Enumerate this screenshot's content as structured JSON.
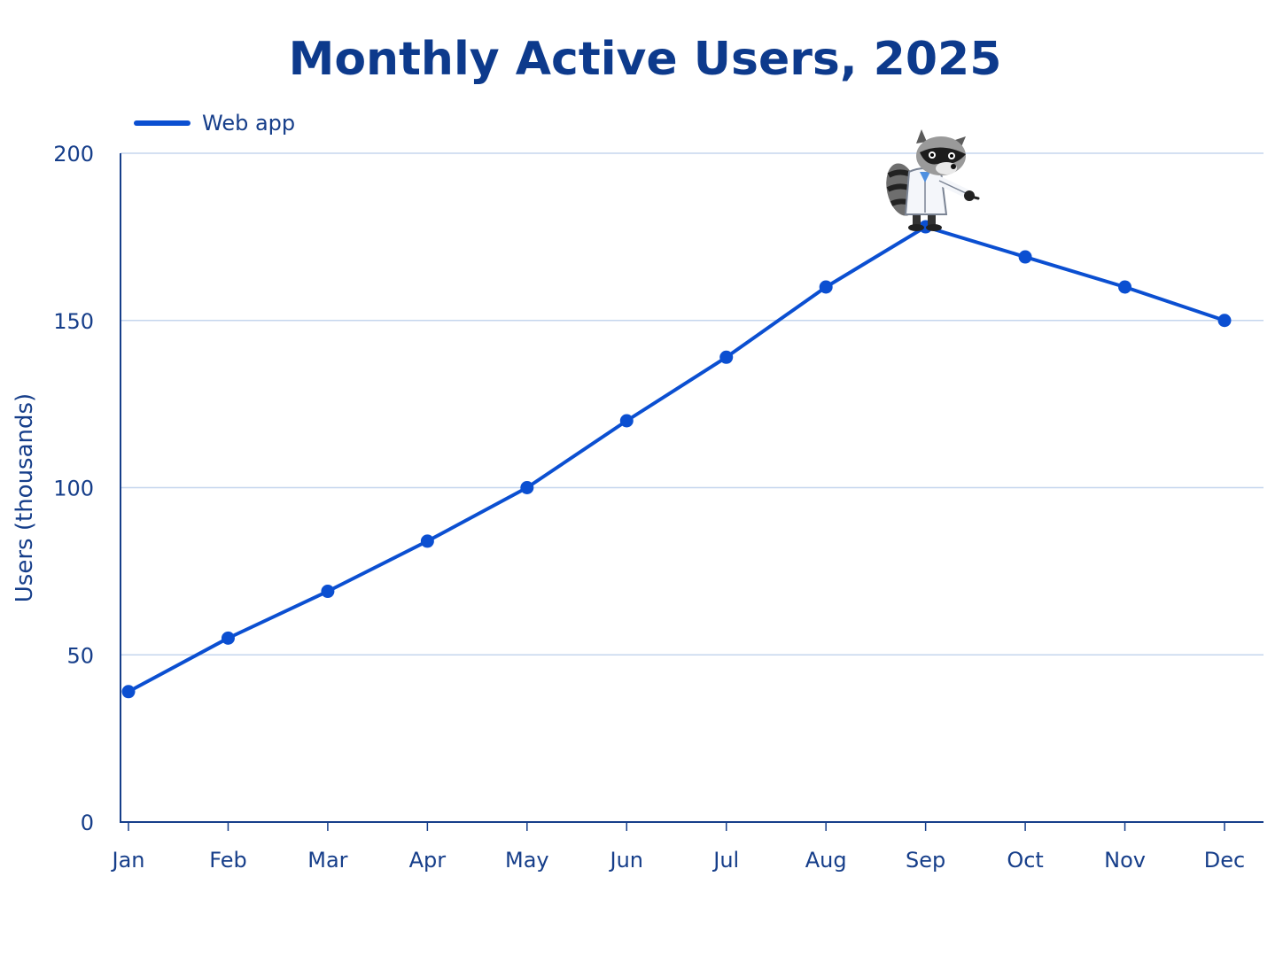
{
  "chart_data": {
    "type": "line",
    "title": "Monthly Active Users, 2025",
    "xlabel": "",
    "ylabel": "Users (thousands)",
    "categories": [
      "Jan",
      "Feb",
      "Mar",
      "Apr",
      "May",
      "Jun",
      "Jul",
      "Aug",
      "Sep",
      "Oct",
      "Nov",
      "Dec"
    ],
    "series": [
      {
        "name": "Web app",
        "color": "#0b4fd1",
        "values": [
          39,
          55,
          69,
          84,
          100,
          120,
          139,
          160,
          178,
          169,
          160,
          150
        ]
      }
    ],
    "ylim": [
      0,
      200
    ],
    "yticks": [
      0,
      50,
      100,
      150,
      200
    ],
    "grid": true,
    "legend_position": "top-left",
    "annotation": "raccoon mascot in lab coat pointing at the peak (Sep)"
  }
}
